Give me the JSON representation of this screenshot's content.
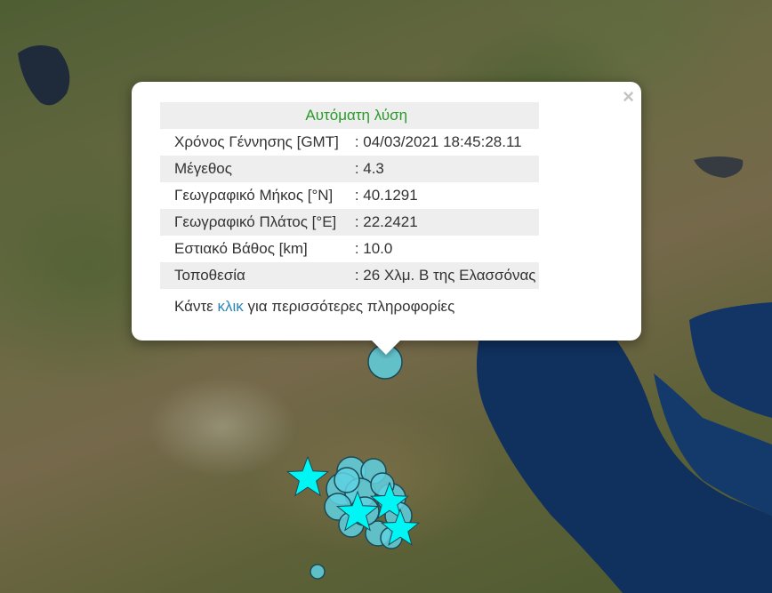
{
  "popup": {
    "title": "Αυτόματη λύση",
    "close_label": "×",
    "rows": [
      {
        "label": "Χρόνος Γέννησης [GMT]",
        "value": ": 04/03/2021 18:45:28.11"
      },
      {
        "label": "Μέγεθος",
        "value": ": 4.3"
      },
      {
        "label": "Γεωγραφικό Μήκος [°N]",
        "value": ": 40.1291"
      },
      {
        "label": "Γεωγραφικό Πλάτος [°E]",
        "value": ": 22.2421"
      },
      {
        "label": "Εστιακό Βάθος [km]",
        "value": ": 10.0"
      },
      {
        "label": "Τοποθεσία",
        "value": ": 26 Χλμ. Β της Ελασσόνας"
      }
    ],
    "more_prefix": "Κάντε",
    "more_link": "κλικ",
    "more_suffix": "για περισσότερες πληροφορίες",
    "title_color": "#2a9a2a",
    "link_color": "#2a86b8"
  },
  "markers": {
    "color": "#5fd0e0",
    "star_color": "#00f5f5"
  }
}
